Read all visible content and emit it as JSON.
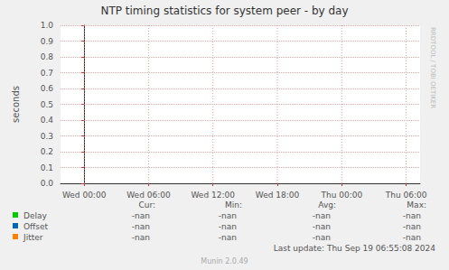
{
  "chart_data": {
    "type": "line",
    "title": "NTP timing statistics for system peer - by day",
    "y_label": "seconds",
    "x": [],
    "xlim": [
      -2.2,
      31.3
    ],
    "xticks": [
      {
        "value": 0,
        "label": "Wed 00:00"
      },
      {
        "value": 6,
        "label": "Wed 06:00"
      },
      {
        "value": 12,
        "label": "Wed 12:00"
      },
      {
        "value": 18,
        "label": "Wed 18:00"
      },
      {
        "value": 24,
        "label": "Thu 00:00"
      },
      {
        "value": 30,
        "label": "Thu 06:00"
      }
    ],
    "ylim": [
      0,
      1
    ],
    "yticks": [
      {
        "value": 0,
        "label": "0.0"
      },
      {
        "value": 0.1,
        "label": "0.1"
      },
      {
        "value": 0.2,
        "label": "0.2"
      },
      {
        "value": 0.3,
        "label": "0.3"
      },
      {
        "value": 0.4,
        "label": "0.4"
      },
      {
        "value": 0.5,
        "label": "0.5"
      },
      {
        "value": 0.6,
        "label": "0.6"
      },
      {
        "value": 0.7,
        "label": "0.7"
      },
      {
        "value": 0.8,
        "label": "0.8"
      },
      {
        "value": 0.9,
        "label": "0.9"
      },
      {
        "value": 1,
        "label": "1.0"
      }
    ],
    "grid": true,
    "legend": "bottom",
    "legend_columns": [
      "Cur:",
      "Min:",
      "Avg:",
      "Max:"
    ],
    "series": [
      {
        "name": "Delay",
        "color": "#00cc00",
        "values": [],
        "stats": [
          "-nan",
          "-nan",
          "-nan",
          "-nan"
        ]
      },
      {
        "name": "Offset",
        "color": "#0066b3",
        "values": [],
        "stats": [
          "-nan",
          "-nan",
          "-nan",
          "-nan"
        ]
      },
      {
        "name": "Jitter",
        "color": "#ff8000",
        "values": [],
        "stats": [
          "-nan",
          "-nan",
          "-nan",
          "-nan"
        ]
      }
    ],
    "footer": "Last update: Thu Sep 19 06:55:08 2024",
    "credit": "Munin 2.0.49",
    "side_text": "RRDTOOL / TOBI OETIKER"
  }
}
